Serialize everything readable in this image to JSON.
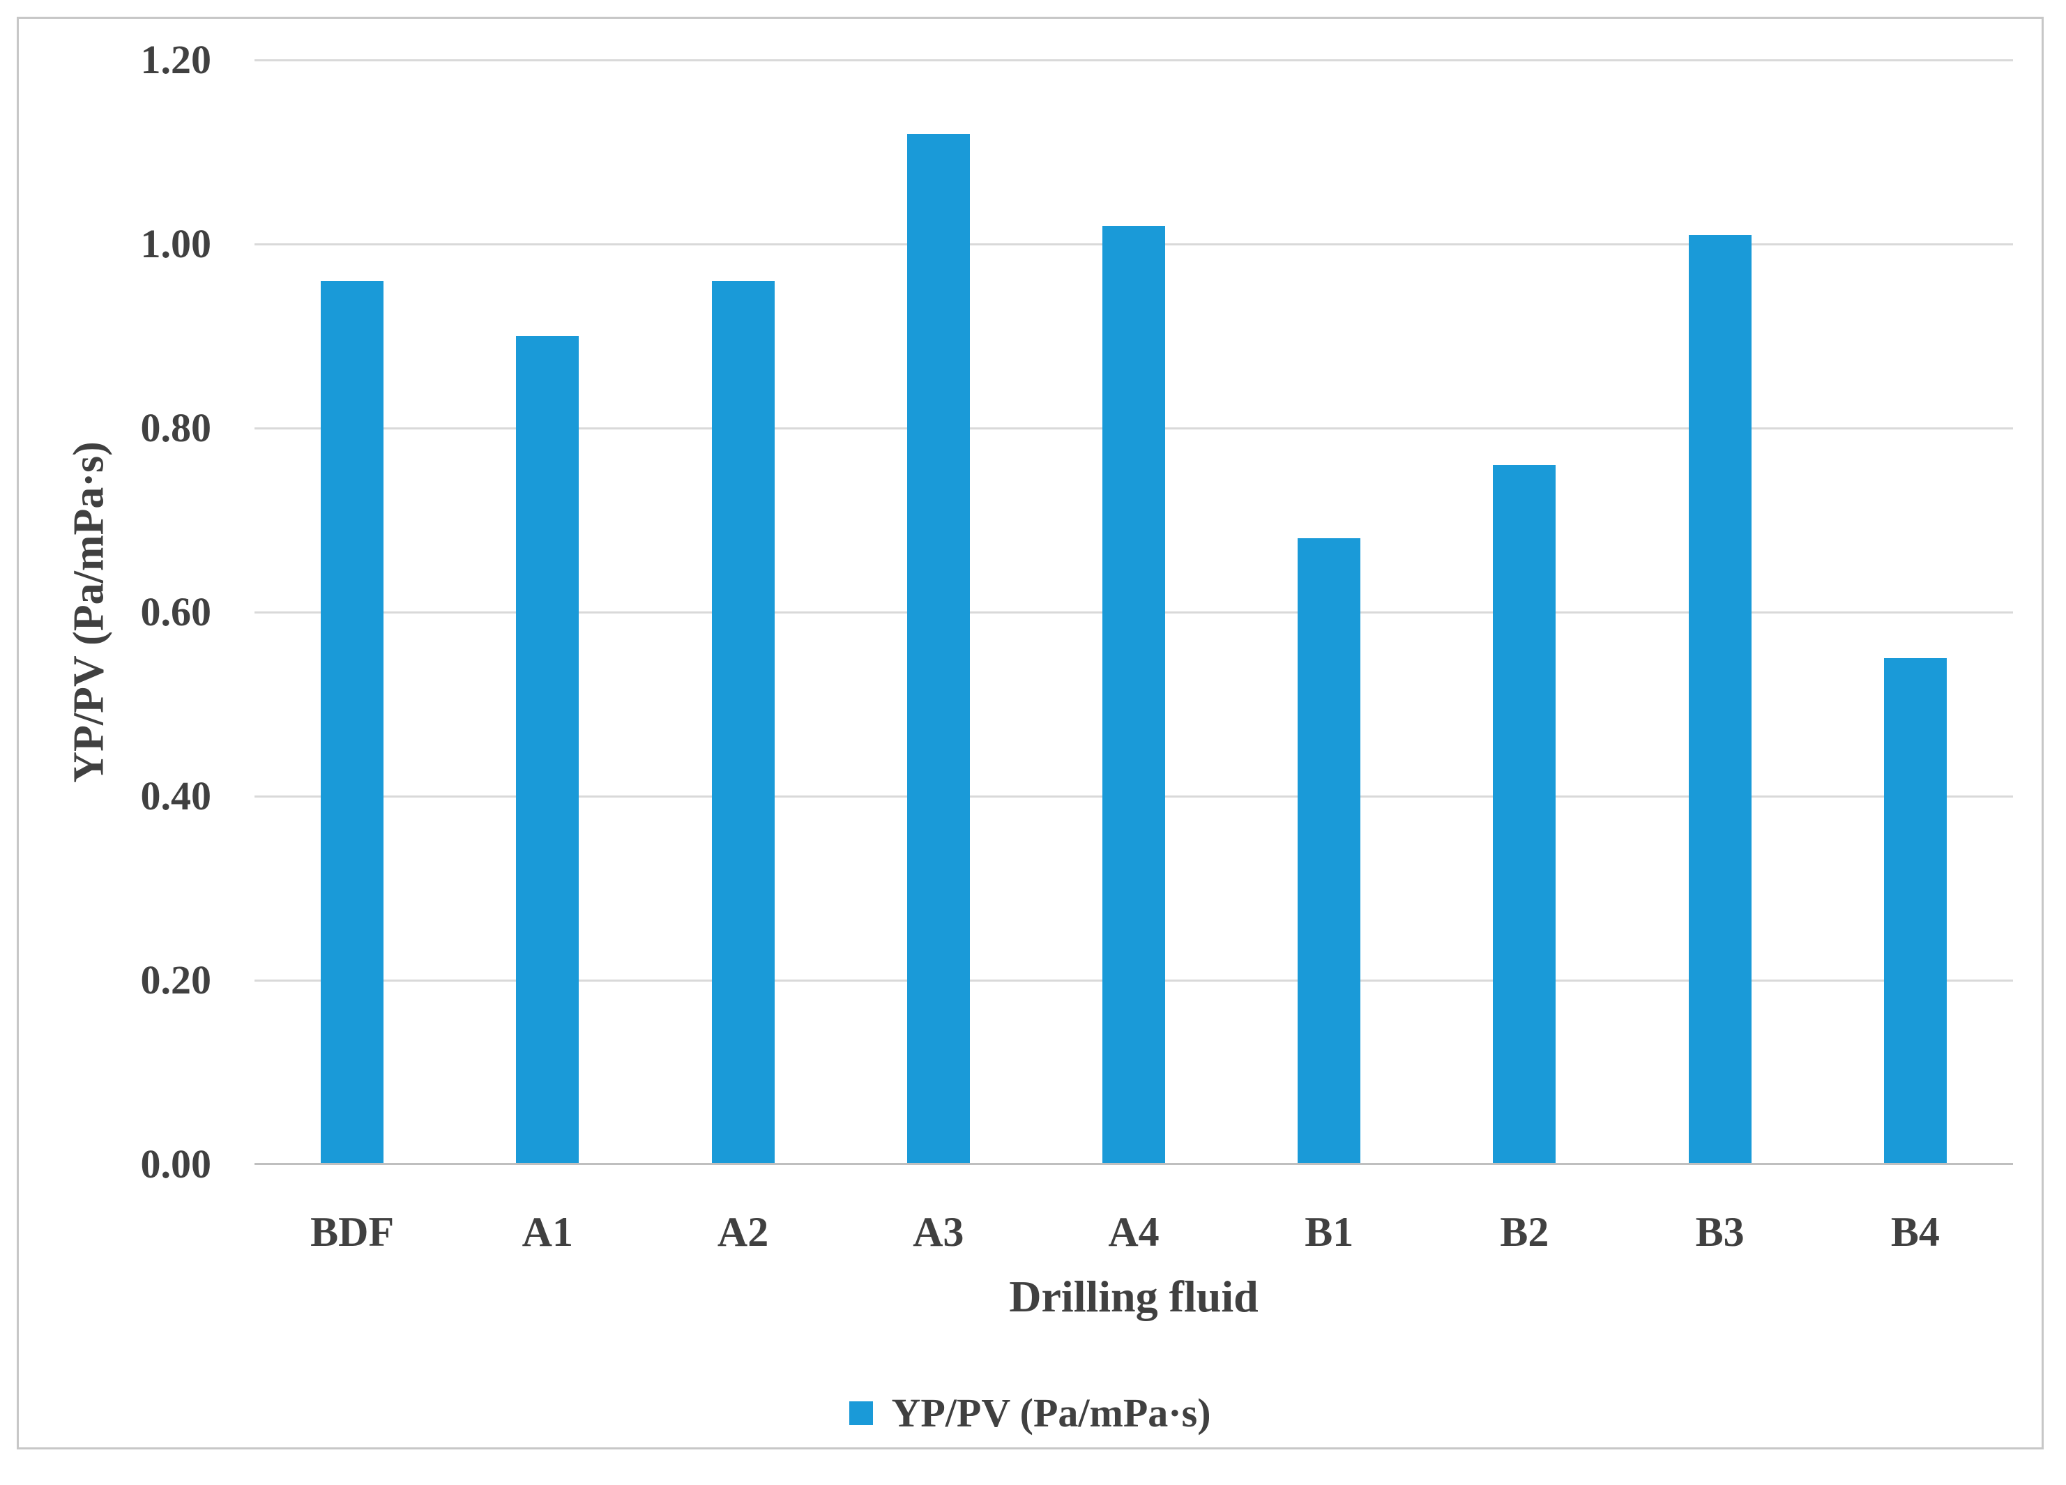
{
  "chart_data": {
    "type": "bar",
    "categories": [
      "BDF",
      "A1",
      "A2",
      "A3",
      "A4",
      "B1",
      "B2",
      "B3",
      "B4"
    ],
    "values": [
      0.96,
      0.9,
      0.96,
      1.12,
      1.02,
      0.68,
      0.76,
      1.01,
      0.55
    ],
    "series": [
      {
        "name": "YP/PV (Pa/mPa·s)",
        "values": [
          0.96,
          0.9,
          0.96,
          1.12,
          1.02,
          0.68,
          0.76,
          1.01,
          0.55
        ]
      }
    ],
    "title": "",
    "xlabel": "Drilling fluid",
    "ylabel": "YP/PV (Pa/mPa·s)",
    "ylim": [
      0,
      1.2
    ],
    "ytick_step": 0.2,
    "ytick_labels": [
      "1.20",
      "1.00",
      "0.80",
      "0.60",
      "0.40",
      "0.20",
      "0.00"
    ],
    "grid": "horizontal",
    "legend_position": "bottom-center"
  },
  "legend": {
    "label": "YP/PV (Pa/mPa·s)"
  },
  "x_axis": {
    "title": "Drilling fluid"
  },
  "y_axis": {
    "title": "YP/PV (Pa/mPa·s)"
  },
  "colors": {
    "bar": "#1A9AD8",
    "text": "#404040",
    "gridline": "#D9D9D9",
    "axis_line": "#BFBFBF",
    "frame_border": "#C7C7C7",
    "background": "#FFFFFF"
  }
}
